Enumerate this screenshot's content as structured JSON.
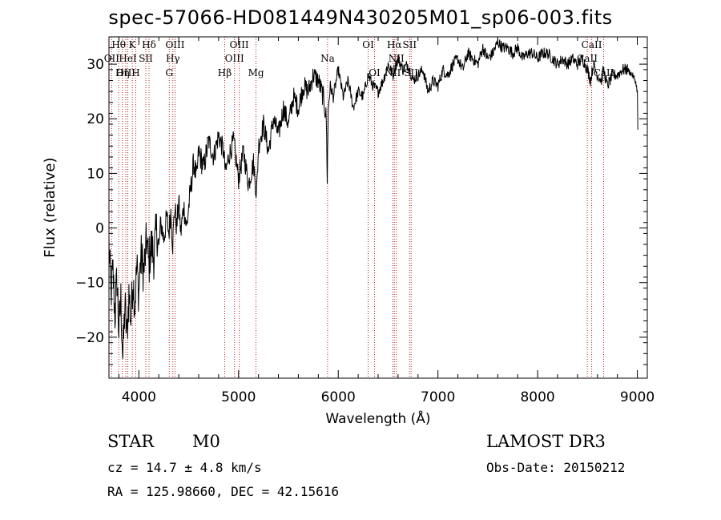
{
  "chart_data": {
    "type": "line",
    "title": "spec-57066-HD081449N430205M01_sp06-003.fits",
    "xlabel": "Wavelength (Å)",
    "ylabel": "Flux (relative)",
    "xlim": [
      3700,
      9100
    ],
    "ylim": [
      -27.5,
      35
    ],
    "xticks": [
      4000,
      5000,
      6000,
      7000,
      8000,
      9000
    ],
    "yticks": [
      -20,
      -10,
      0,
      10,
      20,
      30
    ],
    "series": [
      {
        "name": "flux",
        "x": [
          3700,
          3720,
          3740,
          3760,
          3780,
          3800,
          3820,
          3840,
          3860,
          3880,
          3900,
          3920,
          3940,
          3960,
          3980,
          4000,
          4020,
          4050,
          4080,
          4100,
          4120,
          4150,
          4180,
          4200,
          4220,
          4250,
          4280,
          4300,
          4320,
          4340,
          4360,
          4380,
          4400,
          4420,
          4450,
          4480,
          4500,
          4520,
          4550,
          4580,
          4600,
          4650,
          4700,
          4750,
          4800,
          4850,
          4870,
          4900,
          4950,
          5000,
          5050,
          5100,
          5150,
          5180,
          5200,
          5250,
          5300,
          5350,
          5400,
          5450,
          5500,
          5550,
          5600,
          5650,
          5700,
          5750,
          5800,
          5850,
          5880,
          5890,
          5900,
          5920,
          5950,
          6000,
          6050,
          6100,
          6150,
          6200,
          6250,
          6300,
          6350,
          6400,
          6450,
          6500,
          6550,
          6560,
          6600,
          6650,
          6700,
          6750,
          6800,
          6850,
          6900,
          6950,
          7000,
          7050,
          7100,
          7150,
          7200,
          7250,
          7300,
          7350,
          7400,
          7450,
          7500,
          7550,
          7600,
          7650,
          7700,
          7750,
          7800,
          7850,
          7900,
          7950,
          8000,
          8050,
          8100,
          8150,
          8200,
          8250,
          8300,
          8350,
          8400,
          8450,
          8500,
          8530,
          8560,
          8600,
          8640,
          8660,
          8700,
          8750,
          8800,
          8850,
          8900,
          8950,
          8980,
          9000,
          9005
        ],
        "y": [
          -3,
          -12,
          -8,
          -16,
          -9,
          -19,
          -13,
          -24,
          -14,
          -20,
          -12,
          -17,
          -9,
          -14,
          -7,
          -12,
          -5,
          -8,
          -2,
          -7,
          -3,
          -5,
          0,
          -4,
          1,
          -2,
          2,
          -1,
          3,
          -3,
          4,
          0,
          5,
          -1,
          4,
          0,
          4,
          7,
          12,
          9,
          14,
          11,
          16,
          13,
          17,
          14,
          10,
          13,
          16,
          9,
          14,
          8,
          12,
          6,
          15,
          19,
          14,
          20,
          17,
          22,
          19,
          24,
          22,
          26,
          25,
          28,
          27,
          24,
          20,
          9,
          22,
          26,
          24,
          29,
          24,
          27,
          22,
          25,
          24,
          28,
          26,
          25,
          27,
          30,
          28,
          29,
          31,
          29,
          30,
          27,
          28,
          29,
          25,
          27,
          26,
          29,
          28,
          30,
          31,
          29,
          32,
          31,
          30,
          33,
          31,
          32,
          34,
          33,
          33,
          32,
          33,
          31,
          32,
          32,
          31,
          32,
          32,
          31,
          30,
          31,
          30,
          31,
          30,
          31,
          29,
          27,
          30,
          28,
          27,
          29,
          26,
          28,
          28,
          29,
          29,
          28,
          27,
          25,
          18
        ]
      }
    ],
    "spectral_lines": [
      {
        "name": "Hθ",
        "x": 3798,
        "row": 0
      },
      {
        "name": "OII",
        "x": 3727,
        "row": 1
      },
      {
        "name": "OIII",
        "x": 3869,
        "row": 2
      },
      {
        "name": "K",
        "x": 3934,
        "row": 0
      },
      {
        "name": "HeI",
        "x": 3889,
        "row": 1
      },
      {
        "name": "Hη",
        "x": 3835,
        "row": 2
      },
      {
        "name": "SII",
        "x": 4070,
        "row": 1
      },
      {
        "name": "H",
        "x": 3969,
        "row": 2
      },
      {
        "name": "Hδ",
        "x": 4102,
        "row": 0
      },
      {
        "name": "OIII",
        "x": 4363,
        "row": 0
      },
      {
        "name": "Hγ",
        "x": 4341,
        "row": 1
      },
      {
        "name": "G",
        "x": 4305,
        "row": 2
      },
      {
        "name": "Hβ",
        "x": 4861,
        "row": 2
      },
      {
        "name": "OIII",
        "x": 5007,
        "row": 0
      },
      {
        "name": "OIII",
        "x": 4959,
        "row": 1
      },
      {
        "name": "Mg",
        "x": 5175,
        "row": 2
      },
      {
        "name": "Na",
        "x": 5893,
        "row": 1
      },
      {
        "name": "OI",
        "x": 6300,
        "row": 0
      },
      {
        "name": "OI",
        "x": 6364,
        "row": 2
      },
      {
        "name": "Hα",
        "x": 6563,
        "row": 0
      },
      {
        "name": "NII",
        "x": 6583,
        "row": 1
      },
      {
        "name": "NII",
        "x": 6548,
        "row": 2
      },
      {
        "name": "SII",
        "x": 6716,
        "row": 0
      },
      {
        "name": "SII",
        "x": 6731,
        "row": 2
      },
      {
        "name": "CaII",
        "x": 8542,
        "row": 0
      },
      {
        "name": "CaII",
        "x": 8498,
        "row": 1
      },
      {
        "name": "CaII",
        "x": 8662,
        "row": 2
      }
    ],
    "line_color": "#b22222",
    "grid": false
  },
  "info": {
    "object_class": "STAR",
    "subclass": "M0",
    "survey": "LAMOST DR3",
    "redshift": "cz = 14.7 ± 4.8 km/s",
    "obs_date": "Obs-Date: 20150212",
    "coords": "RA = 125.98660, DEC =  42.15616"
  }
}
